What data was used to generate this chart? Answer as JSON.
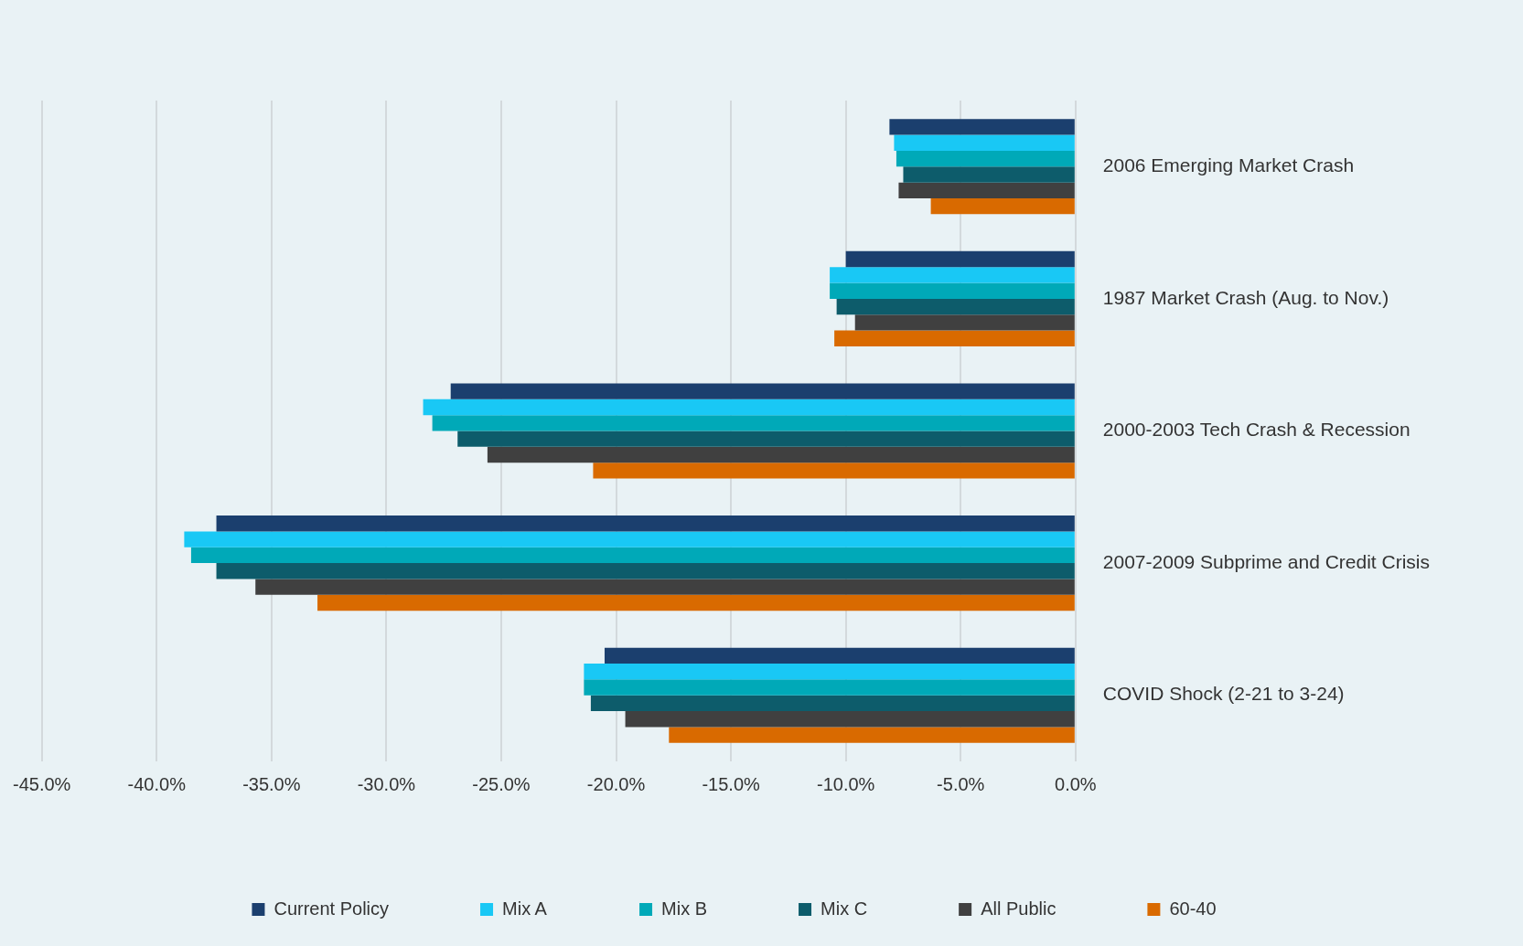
{
  "chart_data": {
    "type": "bar",
    "orientation": "horizontal",
    "categories": [
      "2006 Emerging Market Crash",
      "1987 Market Crash (Aug. to Nov.)",
      "2000-2003 Tech Crash & Recession",
      "2007-2009 Subprime and Credit Crisis",
      "COVID Shock (2-21 to 3-24)"
    ],
    "series": [
      {
        "name": "Current Policy",
        "color": "#1b3f6e",
        "values": [
          -8.1,
          -10.0,
          -27.2,
          -37.4,
          -20.5
        ]
      },
      {
        "name": "Mix A",
        "color": "#19c8f5",
        "values": [
          -7.9,
          -10.7,
          -28.4,
          -38.8,
          -21.4
        ]
      },
      {
        "name": "Mix B",
        "color": "#00a9b8",
        "values": [
          -7.8,
          -10.7,
          -28.0,
          -38.5,
          -21.4
        ]
      },
      {
        "name": "Mix C",
        "color": "#0d5c6b",
        "values": [
          -7.5,
          -10.4,
          -26.9,
          -37.4,
          -21.1
        ]
      },
      {
        "name": "All Public",
        "color": "#404040",
        "values": [
          -7.7,
          -9.6,
          -25.6,
          -35.7,
          -19.6
        ]
      },
      {
        "name": "60-40",
        "color": "#d96a00",
        "values": [
          -6.3,
          -10.5,
          -21.0,
          -33.0,
          -17.7
        ]
      }
    ],
    "xlim": [
      -45,
      0
    ],
    "xticks": [
      {
        "value": -45,
        "label": "-45.0%"
      },
      {
        "value": -40,
        "label": "-40.0%"
      },
      {
        "value": -35,
        "label": "-35.0%"
      },
      {
        "value": -30,
        "label": "-30.0%"
      },
      {
        "value": -25,
        "label": "-25.0%"
      },
      {
        "value": -20,
        "label": "-20.0%"
      },
      {
        "value": -15,
        "label": "-15.0%"
      },
      {
        "value": -10,
        "label": "-10.0%"
      },
      {
        "value": -5,
        "label": "-5.0%"
      },
      {
        "value": 0,
        "label": "0.0%"
      }
    ],
    "grid": "x",
    "legend": "bottom"
  }
}
